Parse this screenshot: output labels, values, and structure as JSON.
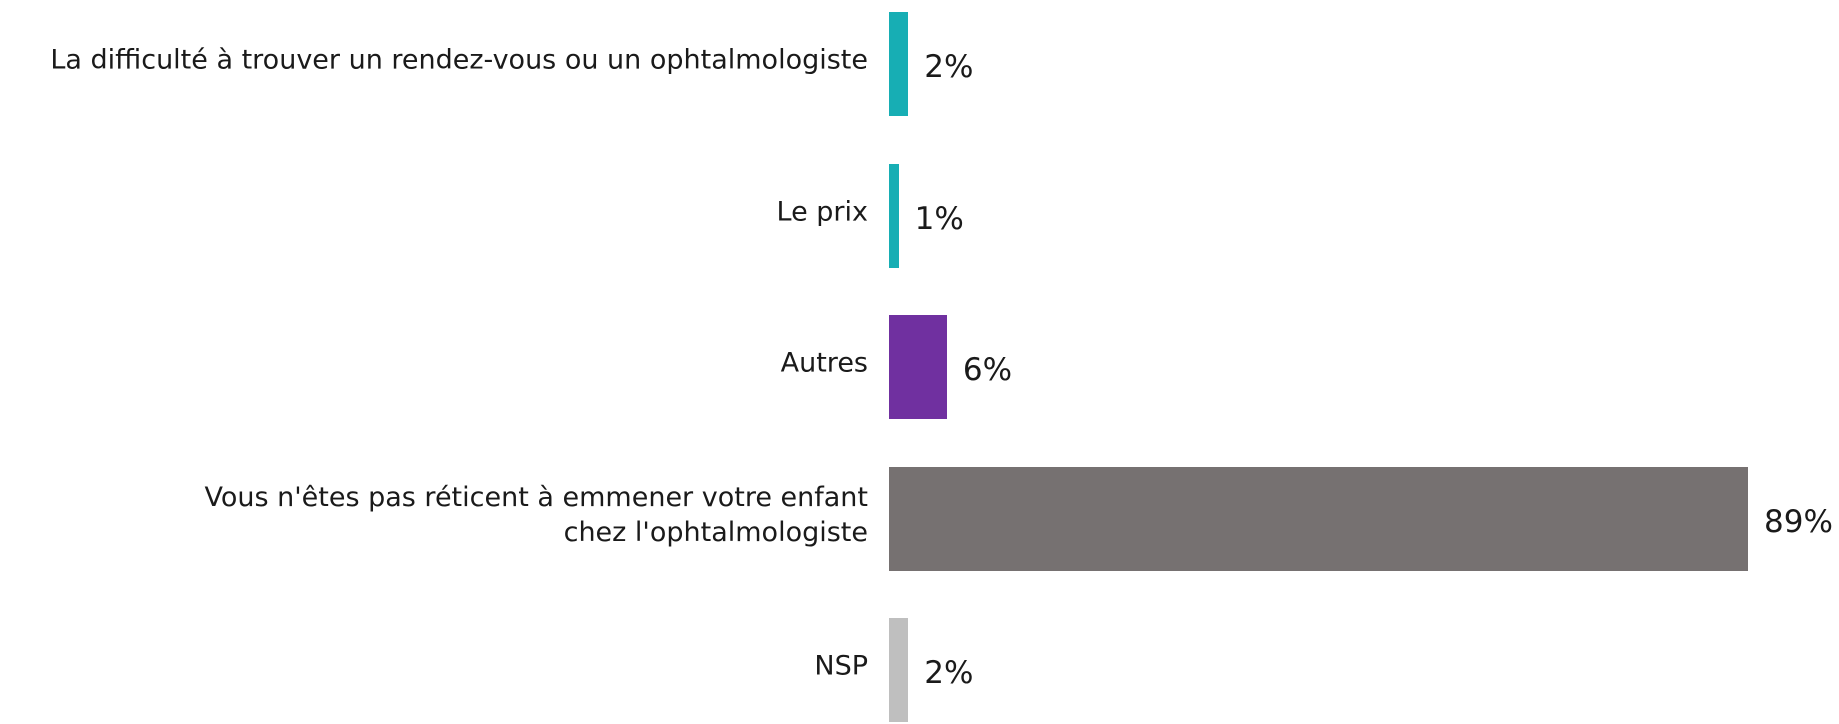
{
  "chart_data": {
    "type": "bar",
    "orientation": "horizontal",
    "categories": [
      "La difficulté à trouver un rendez-vous ou un ophtalmologiste",
      "Le prix",
      "Autres",
      "Vous n'êtes pas réticent à emmener votre enfant\nchez l'ophtalmologiste",
      "NSP"
    ],
    "values": [
      2,
      1,
      6,
      89,
      2
    ],
    "value_labels": [
      "2%",
      "1%",
      "6%",
      "89%",
      "2%"
    ],
    "colors": [
      "#17aeb4",
      "#17aeb4",
      "#7030a0",
      "#767171",
      "#bfbfbf"
    ]
  }
}
